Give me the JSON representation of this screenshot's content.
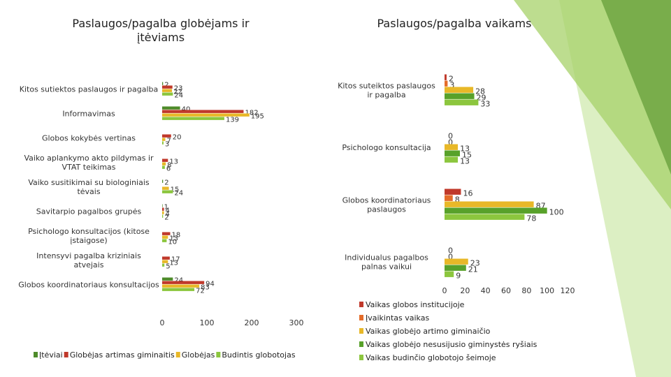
{
  "colors": {
    "dark_green": "#4E8B2A",
    "red": "#C0392B",
    "orange": "#E46C2A",
    "yellow": "#E8B828",
    "green": "#58A12A",
    "light_green": "#8CC63E",
    "deco1": "#6FA442",
    "deco2": "#A7D26A",
    "deco3": "#D3EBB4"
  },
  "chart_data": [
    {
      "type": "bar",
      "orientation": "horizontal",
      "title": "Paslaugos/pagalba globėjams ir įtėviams",
      "categories": [
        "Kitos sutiektos paslaugos ir pagalba",
        "Informavimas",
        "Globos kokybės vertinas",
        "Vaiko aplankymo akto pildymas ir VTAT teikimas",
        "Vaiko susitikimai su biologiniais tėvais",
        "Savitarpio pagalbos grupės",
        "Psichologo konsultacijos (kitose įstaigose)",
        "Intensyvi pagalba kriziniais atvejais",
        "Globos koordinatoriaus konsultacijos"
      ],
      "series": [
        {
          "name": "Įtėviai",
          "color": "#4E8B2A",
          "values": [
            2,
            40,
            0,
            0,
            2,
            1,
            0,
            0,
            24
          ],
          "labels": [
            "2",
            "40",
            "",
            "",
            "2",
            "1",
            "",
            "",
            "24"
          ]
        },
        {
          "name": "Globėjas artimas giminaitis",
          "color": "#C0392B",
          "values": [
            23,
            182,
            20,
            13,
            0,
            4,
            18,
            17,
            94
          ],
          "labels": [
            "23",
            "182",
            "20",
            "13",
            "",
            "4",
            "18",
            "17",
            "94"
          ]
        },
        {
          "name": "Globėjas",
          "color": "#E8B828",
          "values": [
            22,
            195,
            7,
            8,
            15,
            4,
            13,
            13,
            83
          ],
          "labels": [
            "22",
            "195",
            "7",
            "8",
            "15",
            "4",
            "13",
            "13",
            "83"
          ]
        },
        {
          "name": "Budintis globotojas",
          "color": "#8CC63E",
          "values": [
            24,
            139,
            3,
            6,
            24,
            2,
            10,
            5,
            72
          ],
          "labels": [
            "24",
            "139",
            "3",
            "6",
            "24",
            "2",
            "10",
            "5",
            "72"
          ]
        }
      ],
      "xlim": [
        0,
        300
      ],
      "xticks": [
        "0",
        "100",
        "200",
        "300"
      ],
      "legend_position": "bottom"
    },
    {
      "type": "bar",
      "orientation": "horizontal",
      "title": "Paslaugos/pagalba vaikams",
      "categories": [
        "Kitos suteiktos paslaugos ir pagalba",
        "Psichologo konsultacija",
        "Globos koordinatoriaus paslaugos",
        "Individualus pagalbos palnas vaikui"
      ],
      "series": [
        {
          "name": "Vaikas globos institucijoje",
          "color": "#C0392B",
          "values": [
            2,
            0,
            16,
            0
          ]
        },
        {
          "name": "Įvaikintas vaikas",
          "color": "#E46C2A",
          "values": [
            3,
            0,
            8,
            0
          ]
        },
        {
          "name": "Vaikas globėjo artimo giminaičio",
          "color": "#E8B828",
          "values": [
            28,
            13,
            87,
            23
          ]
        },
        {
          "name": "Vaikas globėjo nesusijusio giminystės ryšiais",
          "color": "#58A12A",
          "values": [
            29,
            15,
            100,
            21
          ]
        },
        {
          "name": "Vaikas budinčio globotojo šeimoje",
          "color": "#8CC63E",
          "values": [
            33,
            13,
            78,
            9
          ]
        }
      ],
      "xlim": [
        0,
        120
      ],
      "xticks": [
        "0",
        "20",
        "40",
        "60",
        "80",
        "100",
        "120"
      ],
      "legend_position": "bottom"
    }
  ]
}
